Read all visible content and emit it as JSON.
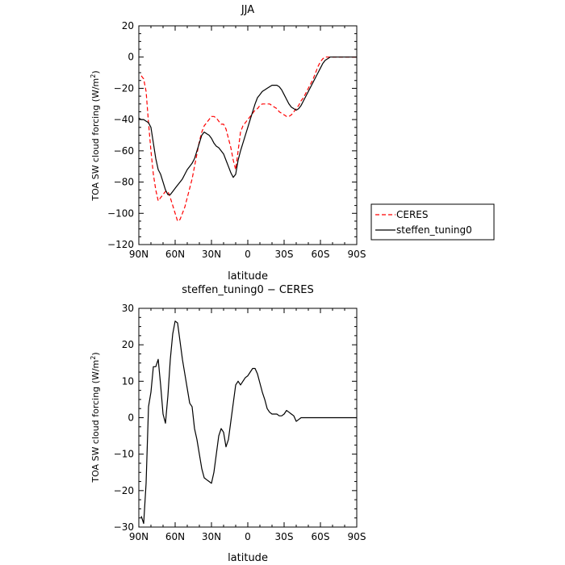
{
  "chart_data": [
    {
      "type": "line",
      "title": "JJA",
      "xlabel": "latitude",
      "ylabel": "TOA SW cloud forcing (W/m²)",
      "ylabel_base": "TOA SW cloud forcing (W/m",
      "ylabel_sup": "2",
      "ylabel_tail": ")",
      "xlim": [
        90,
        -90
      ],
      "ylim": [
        -120,
        20
      ],
      "x_ticks": [
        90,
        60,
        30,
        0,
        -30,
        -60,
        -90
      ],
      "x_tick_labels": [
        "90N",
        "60N",
        "30N",
        "0",
        "30S",
        "60S",
        "90S"
      ],
      "y_ticks": [
        20,
        0,
        -20,
        -40,
        -60,
        -80,
        -100,
        -120
      ],
      "y_tick_labels": [
        "20",
        "0",
        "−20",
        "−40",
        "−60",
        "−80",
        "−100",
        "−120"
      ],
      "legend_position": "right",
      "series": [
        {
          "name": "CERES",
          "color": "#ff0000",
          "dash": "dashed",
          "x": [
            88,
            86,
            84,
            82,
            80,
            78,
            76,
            74,
            72,
            70,
            68,
            66,
            64,
            62,
            60,
            58,
            56,
            54,
            52,
            50,
            48,
            46,
            44,
            42,
            40,
            38,
            36,
            34,
            32,
            30,
            28,
            26,
            24,
            22,
            20,
            18,
            16,
            14,
            12,
            10,
            8,
            6,
            4,
            2,
            0,
            -2,
            -4,
            -6,
            -8,
            -10,
            -12,
            -14,
            -16,
            -18,
            -20,
            -22,
            -24,
            -26,
            -28,
            -30,
            -32,
            -34,
            -36,
            -38,
            -40,
            -42,
            -44,
            -46,
            -48,
            -50,
            -52,
            -54,
            -56,
            -58,
            -60,
            -62,
            -64,
            -66,
            -68,
            -70,
            -75,
            -80,
            -85,
            -90
          ],
          "y": [
            -12,
            -14,
            -22,
            -42,
            -60,
            -75,
            -85,
            -92,
            -90,
            -88,
            -86,
            -86,
            -90,
            -95,
            -100,
            -105,
            -104,
            -100,
            -96,
            -90,
            -84,
            -78,
            -70,
            -62,
            -54,
            -48,
            -44,
            -42,
            -40,
            -38,
            -38,
            -39,
            -41,
            -43,
            -43,
            -46,
            -52,
            -58,
            -66,
            -72,
            -60,
            -48,
            -44,
            -42,
            -40,
            -38,
            -36,
            -34,
            -33,
            -31,
            -30,
            -30,
            -30,
            -30,
            -31,
            -32,
            -33,
            -35,
            -36,
            -37,
            -38,
            -38,
            -37,
            -35,
            -33,
            -31,
            -28,
            -26,
            -23,
            -20,
            -17,
            -14,
            -10,
            -6,
            -3,
            -1,
            0,
            0,
            0,
            0,
            0,
            0,
            0,
            0
          ]
        },
        {
          "name": "steffen_tuning0",
          "color": "#000000",
          "dash": "solid",
          "x": [
            90,
            88,
            86,
            84,
            82,
            80,
            78,
            76,
            74,
            72,
            70,
            68,
            66,
            64,
            62,
            60,
            58,
            56,
            54,
            52,
            50,
            48,
            46,
            44,
            42,
            40,
            38,
            36,
            34,
            32,
            30,
            28,
            26,
            24,
            22,
            20,
            18,
            16,
            14,
            12,
            10,
            8,
            6,
            4,
            2,
            0,
            -2,
            -4,
            -6,
            -8,
            -10,
            -12,
            -14,
            -16,
            -18,
            -20,
            -22,
            -24,
            -26,
            -28,
            -30,
            -32,
            -34,
            -36,
            -38,
            -40,
            -42,
            -44,
            -46,
            -48,
            -50,
            -52,
            -54,
            -56,
            -58,
            -60,
            -62,
            -64,
            -66,
            -68,
            -70,
            -75,
            -80,
            -85,
            -90
          ],
          "y": [
            -39,
            -40,
            -40,
            -41,
            -42,
            -45,
            -55,
            -65,
            -72,
            -75,
            -80,
            -85,
            -88,
            -88,
            -86,
            -84,
            -82,
            -80,
            -78,
            -75,
            -72,
            -70,
            -68,
            -65,
            -60,
            -55,
            -50,
            -48,
            -49,
            -50,
            -52,
            -55,
            -57,
            -58,
            -60,
            -62,
            -66,
            -70,
            -74,
            -77,
            -75,
            -66,
            -60,
            -55,
            -50,
            -45,
            -40,
            -35,
            -30,
            -26,
            -24,
            -22,
            -21,
            -20,
            -19,
            -18,
            -18,
            -18,
            -19,
            -21,
            -24,
            -27,
            -30,
            -32,
            -33,
            -34,
            -33,
            -31,
            -28,
            -25,
            -22,
            -19,
            -16,
            -13,
            -10,
            -7,
            -4,
            -2,
            -1,
            0,
            0,
            0,
            0,
            0,
            0
          ]
        }
      ]
    },
    {
      "type": "line",
      "title": "steffen_tuning0 − CERES",
      "xlabel": "latitude",
      "ylabel": "TOA SW cloud forcing (W/m²)",
      "ylabel_base": "TOA SW cloud forcing (W/m",
      "ylabel_sup": "2",
      "ylabel_tail": ")",
      "xlim": [
        90,
        -90
      ],
      "ylim": [
        -30,
        30
      ],
      "x_ticks": [
        90,
        60,
        30,
        0,
        -30,
        -60,
        -90
      ],
      "x_tick_labels": [
        "90N",
        "60N",
        "30N",
        "0",
        "30S",
        "60S",
        "90S"
      ],
      "y_ticks": [
        30,
        20,
        10,
        0,
        -10,
        -20,
        -30
      ],
      "y_tick_labels": [
        "30",
        "20",
        "10",
        "0",
        "−10",
        "−20",
        "−30"
      ],
      "series": [
        {
          "color": "#000000",
          "dash": "solid",
          "x": [
            88,
            86,
            84,
            82,
            80,
            78,
            76,
            74,
            72,
            70,
            68,
            66,
            64,
            62,
            60,
            58,
            56,
            54,
            52,
            50,
            48,
            46,
            44,
            42,
            40,
            38,
            36,
            34,
            32,
            30,
            28,
            26,
            24,
            22,
            20,
            18,
            16,
            14,
            12,
            10,
            8,
            6,
            4,
            2,
            0,
            -2,
            -4,
            -6,
            -8,
            -10,
            -12,
            -14,
            -16,
            -18,
            -20,
            -22,
            -24,
            -26,
            -28,
            -30,
            -32,
            -34,
            -36,
            -38,
            -40,
            -42,
            -44,
            -46,
            -48,
            -50,
            -52,
            -54,
            -56,
            -58,
            -60,
            -62,
            -64,
            -66,
            -68,
            -70,
            -75,
            -80,
            -85,
            -90
          ],
          "y": [
            -27,
            -29,
            -18,
            3,
            7,
            14,
            14,
            16,
            9,
            1,
            -1.5,
            6,
            16,
            23,
            26.5,
            26,
            21,
            16,
            12,
            8,
            4,
            3,
            -3,
            -6,
            -10,
            -14,
            -16.5,
            -17,
            -17.5,
            -18,
            -15,
            -10,
            -5,
            -3,
            -4,
            -8,
            -6,
            -1,
            4,
            9,
            10,
            9,
            10,
            11,
            11.5,
            12.5,
            13.5,
            13.5,
            12,
            9.5,
            7,
            5,
            2.5,
            1.5,
            1,
            1,
            1,
            0.5,
            0.5,
            1,
            2,
            1.5,
            1,
            0.5,
            -1,
            -0.5,
            0,
            0,
            0,
            0,
            0,
            0,
            0,
            0,
            0,
            0,
            0,
            0,
            0,
            0,
            0,
            0,
            0,
            0
          ]
        }
      ]
    }
  ]
}
